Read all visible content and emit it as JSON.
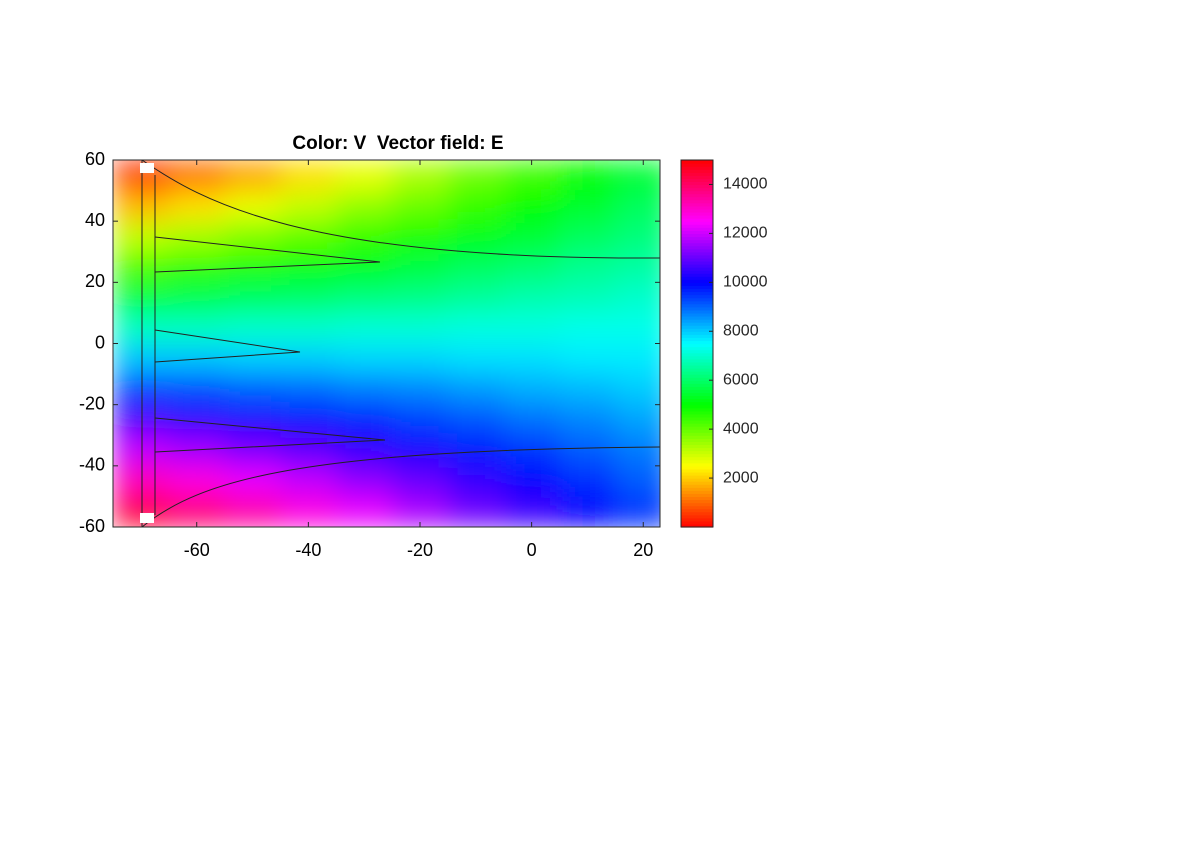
{
  "chart_data": {
    "type": "heatmap",
    "title": "Color: V  Vector field: E",
    "x": [
      -70,
      -60,
      -50,
      -40,
      -30,
      -20,
      -10,
      0,
      10,
      20
    ],
    "y": [
      55,
      45,
      35,
      25,
      15,
      5,
      -5,
      -15,
      -25,
      -35,
      -45,
      -55
    ],
    "z": [
      [
        500,
        1100,
        1600,
        2200,
        2700,
        3300,
        3900,
        4400,
        5000,
        5500
      ],
      [
        1800,
        2200,
        2700,
        3100,
        3600,
        4000,
        4500,
        5000,
        5400,
        5900
      ],
      [
        3100,
        3400,
        3800,
        4100,
        4500,
        4800,
        5200,
        5500,
        5900,
        6200
      ],
      [
        4300,
        4600,
        4800,
        5100,
        5300,
        5600,
        5900,
        6100,
        6400,
        6600
      ],
      [
        5600,
        5700,
        5900,
        6000,
        6200,
        6300,
        6500,
        6700,
        6800,
        7000
      ],
      [
        6900,
        6900,
        7000,
        7000,
        7100,
        7100,
        7200,
        7200,
        7300,
        7300
      ],
      [
        8100,
        8100,
        8000,
        8000,
        7900,
        7900,
        7800,
        7800,
        7700,
        7700
      ],
      [
        9400,
        9300,
        9100,
        9000,
        8800,
        8700,
        8500,
        8300,
        8200,
        8000
      ],
      [
        10700,
        10400,
        10200,
        9900,
        9700,
        9400,
        9200,
        8900,
        8700,
        8400
      ],
      [
        11900,
        11600,
        11200,
        10900,
        10500,
        10200,
        9800,
        9500,
        9100,
        8800
      ],
      [
        13200,
        12800,
        12300,
        11900,
        11400,
        11000,
        10500,
        10000,
        9600,
        9100
      ],
      [
        14500,
        13900,
        13400,
        12800,
        12300,
        11700,
        11100,
        10600,
        10000,
        9500
      ]
    ],
    "xlim": [
      -75,
      23
    ],
    "ylim": [
      -60,
      60
    ],
    "xticks": [
      -60,
      -40,
      -20,
      0,
      20
    ],
    "yticks": [
      -60,
      -40,
      -20,
      0,
      20,
      40,
      60
    ],
    "colormap": "hsv",
    "clim": [
      0,
      15000
    ],
    "colorbar_ticks": [
      2000,
      4000,
      6000,
      8000,
      10000,
      12000,
      14000
    ]
  }
}
